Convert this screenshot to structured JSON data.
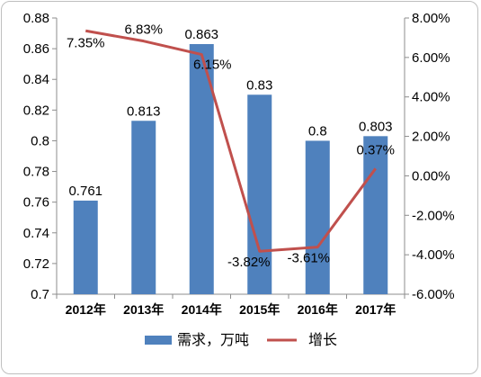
{
  "chart_data": {
    "type": "bar+line",
    "categories": [
      "2012年",
      "2013年",
      "2014年",
      "2015年",
      "2016年",
      "2017年"
    ],
    "series": [
      {
        "name": "需求，万吨",
        "type": "bar",
        "axis": "left",
        "values": [
          0.761,
          0.813,
          0.863,
          0.83,
          0.8,
          0.803
        ],
        "labels": [
          "0.761",
          "0.813",
          "0.863",
          "0.83",
          "0.8",
          "0.803"
        ],
        "color": "#4f81bd"
      },
      {
        "name": "增长",
        "type": "line",
        "axis": "right",
        "values": [
          7.35,
          6.83,
          6.15,
          -3.82,
          -3.61,
          0.37
        ],
        "labels": [
          "7.35%",
          "6.83%",
          "6.15%",
          "-3.82%",
          "-3.61%",
          "0.37%"
        ],
        "color": "#c0504d"
      }
    ],
    "y_left": {
      "range": [
        0.7,
        0.88
      ],
      "ticks": [
        "0.88",
        "0.86",
        "0.84",
        "0.82",
        "0.8",
        "0.78",
        "0.76",
        "0.74",
        "0.72",
        "0.7"
      ]
    },
    "y_right": {
      "range": [
        -6,
        8
      ],
      "ticks": [
        "8.00%",
        "6.00%",
        "4.00%",
        "2.00%",
        "0.00%",
        "-2.00%",
        "-4.00%",
        "-6.00%"
      ]
    },
    "grid": false,
    "legend": "bottom"
  }
}
